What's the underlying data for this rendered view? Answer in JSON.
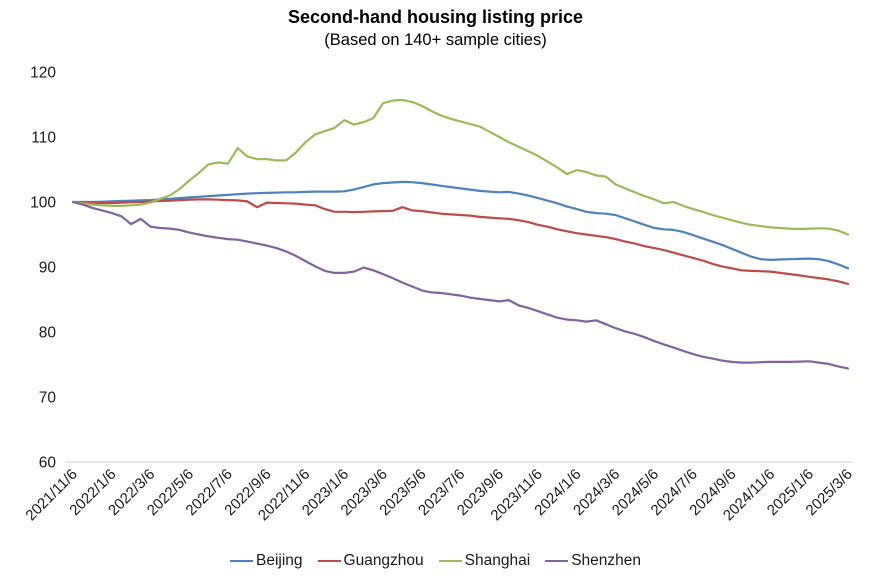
{
  "chart_data": {
    "type": "line",
    "title": "Second-hand housing listing price",
    "subtitle": "(Based on 140+ sample cities)",
    "xlabel": "",
    "ylabel": "",
    "ylim": [
      60,
      120
    ],
    "y_ticks": [
      60,
      70,
      80,
      90,
      100,
      110,
      120
    ],
    "x_tick_labels": [
      "2021/11/6",
      "2022/1/6",
      "2022/3/6",
      "2022/5/6",
      "2022/7/6",
      "2022/9/6",
      "2022/11/6",
      "2023/1/6",
      "2023/3/6",
      "2023/5/6",
      "2023/7/6",
      "2023/9/6",
      "2023/11/6",
      "2024/1/6",
      "2024/3/6",
      "2024/5/6",
      "2024/7/6",
      "2024/9/6",
      "2024/11/6",
      "2025/1/6",
      "2025/3/6"
    ],
    "grid": false,
    "legend_position": "bottom",
    "axis_color": "#d9d9d9",
    "text_color": "#1a1a1a",
    "series": [
      {
        "name": "Beijing",
        "color": "#4f81bd",
        "values": [
          100.0,
          100.0,
          100.0,
          100.05,
          100.1,
          100.15,
          100.2,
          100.25,
          100.3,
          100.4,
          100.5,
          100.6,
          100.7,
          100.8,
          100.9,
          101.0,
          101.1,
          101.2,
          101.3,
          101.35,
          101.4,
          101.45,
          101.5,
          101.5,
          101.55,
          101.6,
          101.6,
          101.6,
          101.65,
          101.9,
          102.3,
          102.7,
          102.9,
          103.0,
          103.1,
          103.05,
          102.9,
          102.7,
          102.5,
          102.3,
          102.1,
          101.9,
          101.7,
          101.6,
          101.5,
          101.55,
          101.3,
          101.0,
          100.6,
          100.2,
          99.8,
          99.3,
          98.9,
          98.5,
          98.3,
          98.2,
          98.0,
          97.5,
          97.0,
          96.5,
          96.0,
          95.8,
          95.7,
          95.4,
          94.9,
          94.4,
          93.9,
          93.4,
          92.8,
          92.2,
          91.6,
          91.2,
          91.1,
          91.15,
          91.2,
          91.25,
          91.3,
          91.2,
          90.9,
          90.4,
          89.8
        ]
      },
      {
        "name": "Guangzhou",
        "color": "#be4b48",
        "values": [
          100.0,
          99.95,
          99.9,
          99.85,
          99.85,
          99.9,
          99.95,
          100.0,
          100.1,
          100.15,
          100.2,
          100.3,
          100.35,
          100.4,
          100.4,
          100.35,
          100.3,
          100.25,
          100.1,
          99.2,
          99.9,
          99.85,
          99.8,
          99.75,
          99.6,
          99.5,
          98.9,
          98.5,
          98.5,
          98.45,
          98.5,
          98.55,
          98.6,
          98.65,
          99.2,
          98.7,
          98.6,
          98.4,
          98.2,
          98.1,
          98.0,
          97.9,
          97.7,
          97.6,
          97.5,
          97.4,
          97.2,
          96.9,
          96.5,
          96.2,
          95.8,
          95.5,
          95.2,
          95.0,
          94.8,
          94.6,
          94.3,
          93.9,
          93.6,
          93.2,
          92.9,
          92.6,
          92.2,
          91.8,
          91.4,
          91.0,
          90.5,
          90.1,
          89.8,
          89.5,
          89.4,
          89.35,
          89.3,
          89.1,
          88.9,
          88.7,
          88.5,
          88.3,
          88.1,
          87.8,
          87.4
        ]
      },
      {
        "name": "Shanghai",
        "color": "#9bbb59",
        "values": [
          100.0,
          99.8,
          99.6,
          99.5,
          99.4,
          99.4,
          99.5,
          99.6,
          99.9,
          100.5,
          101.0,
          102.0,
          103.3,
          104.5,
          105.8,
          106.1,
          105.9,
          108.3,
          107.0,
          106.6,
          106.6,
          106.4,
          106.4,
          107.6,
          109.2,
          110.4,
          110.9,
          111.4,
          112.6,
          111.9,
          112.3,
          112.9,
          115.2,
          115.6,
          115.7,
          115.4,
          114.8,
          114.0,
          113.3,
          112.8,
          112.4,
          112.0,
          111.6,
          110.8,
          110.0,
          109.2,
          108.5,
          107.8,
          107.1,
          106.2,
          105.3,
          104.3,
          104.9,
          104.6,
          104.1,
          103.9,
          102.7,
          102.1,
          101.5,
          100.9,
          100.4,
          99.8,
          100.0,
          99.4,
          98.9,
          98.5,
          98.0,
          97.6,
          97.2,
          96.8,
          96.5,
          96.3,
          96.1,
          96.0,
          95.9,
          95.85,
          95.9,
          95.95,
          95.9,
          95.6,
          95.0
        ]
      },
      {
        "name": "Shenzhen",
        "color": "#8064a2",
        "values": [
          100.0,
          99.6,
          99.1,
          98.7,
          98.3,
          97.8,
          96.6,
          97.4,
          96.2,
          96.0,
          95.9,
          95.7,
          95.3,
          95.0,
          94.7,
          94.5,
          94.3,
          94.2,
          93.9,
          93.6,
          93.3,
          92.9,
          92.4,
          91.7,
          90.9,
          90.1,
          89.4,
          89.1,
          89.1,
          89.3,
          89.9,
          89.5,
          88.9,
          88.3,
          87.6,
          87.0,
          86.4,
          86.1,
          86.0,
          85.8,
          85.6,
          85.3,
          85.1,
          84.9,
          84.7,
          84.9,
          84.1,
          83.7,
          83.2,
          82.7,
          82.2,
          81.9,
          81.8,
          81.6,
          81.8,
          81.2,
          80.6,
          80.1,
          79.7,
          79.2,
          78.6,
          78.1,
          77.6,
          77.1,
          76.6,
          76.2,
          75.9,
          75.6,
          75.4,
          75.3,
          75.3,
          75.35,
          75.4,
          75.4,
          75.4,
          75.45,
          75.5,
          75.3,
          75.1,
          74.7,
          74.4
        ]
      }
    ]
  }
}
